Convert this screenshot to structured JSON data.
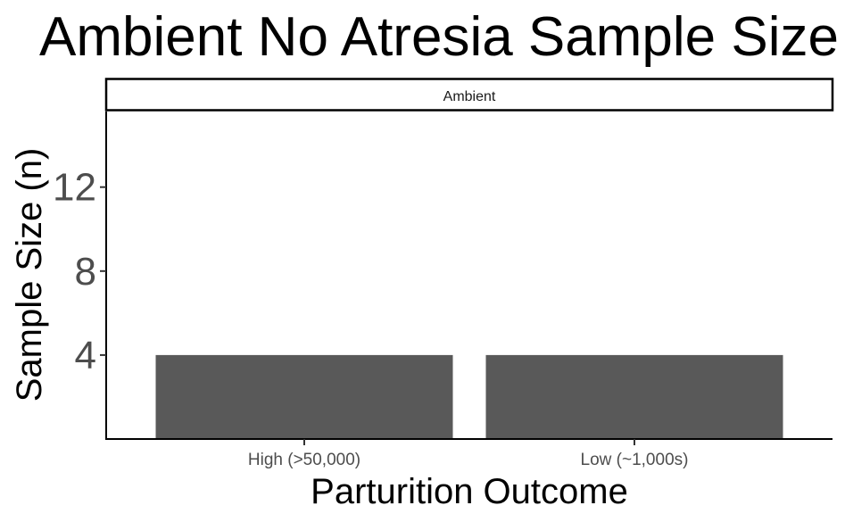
{
  "chart_data": {
    "type": "bar",
    "title": "Ambient No Atresia Sample Size",
    "facet_label": "Ambient",
    "categories": [
      "High (>50,000)",
      "Low (~1,000s)"
    ],
    "values": [
      4,
      4
    ],
    "xlabel": "Parturition Outcome",
    "ylabel": "Sample Size (n)",
    "yticks": [
      4,
      8,
      12
    ],
    "ylim": [
      0,
      15.6
    ],
    "bar_color": "#595959",
    "grid": false
  }
}
